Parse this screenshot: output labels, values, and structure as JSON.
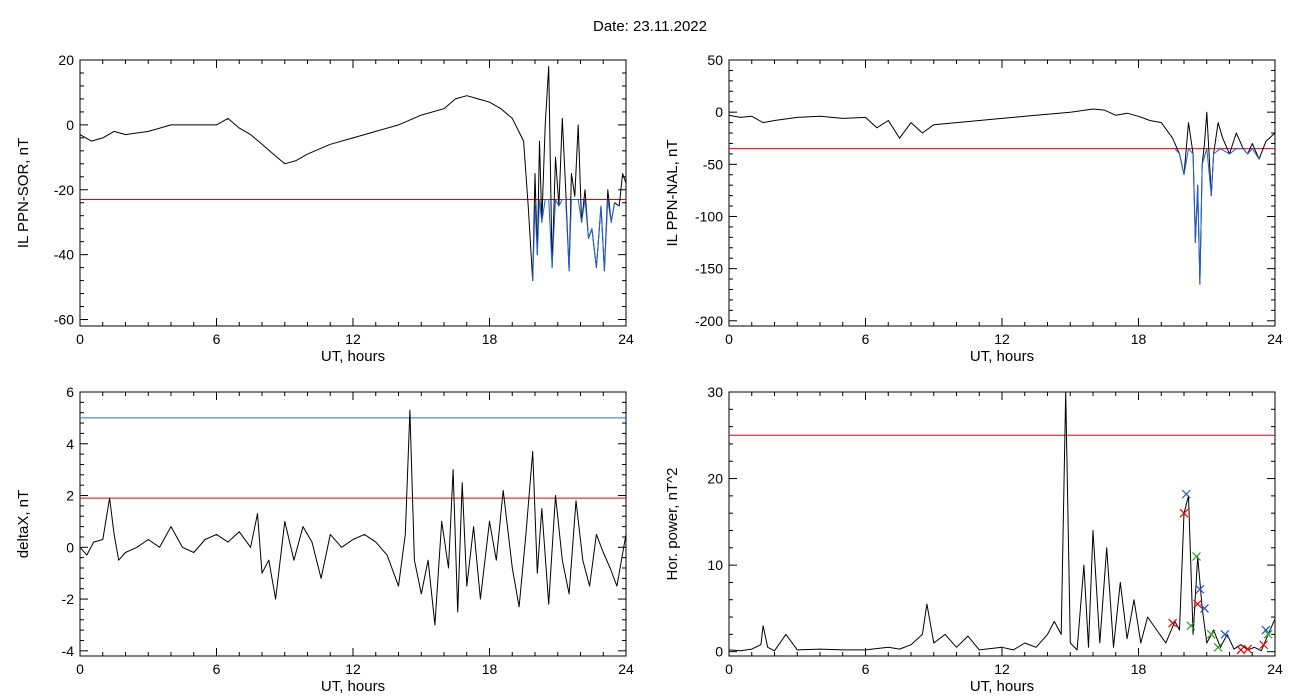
{
  "title": "Date:  23.11.2022",
  "chart_data": [
    {
      "type": "line",
      "ylabel": "IL PPN-SOR, nT",
      "xlabel": "UT, hours",
      "xlim": [
        0,
        24
      ],
      "ylim": [
        -62,
        20
      ],
      "xticks": [
        0,
        6,
        12,
        18,
        24
      ],
      "yticks": [
        -60,
        -40,
        -20,
        0,
        20
      ],
      "hlines": [
        {
          "y": -23,
          "color": "#e8000b"
        }
      ],
      "series": [
        {
          "color": "#000000",
          "x": [
            0,
            0.5,
            1,
            1.5,
            2,
            3,
            4,
            5,
            6,
            6.5,
            7,
            7.5,
            8,
            8.5,
            9,
            9.5,
            10,
            11,
            12,
            13,
            14,
            15,
            16,
            16.5,
            17,
            17.5,
            18,
            18.5,
            19,
            19.5,
            19.7,
            19.9,
            20.0,
            20.1,
            20.2,
            20.3,
            20.45,
            20.6,
            20.75,
            20.9,
            21.05,
            21.2,
            21.35,
            21.5,
            21.6,
            21.75,
            21.9,
            22.05,
            22.2,
            22.35,
            22.5,
            22.7,
            22.9,
            23.05,
            23.2,
            23.35,
            23.5,
            23.7,
            23.85,
            24
          ],
          "y": [
            -3,
            -5,
            -4,
            -2,
            -3,
            -2,
            0,
            0,
            0,
            2,
            -1,
            -3,
            -6,
            -9,
            -12,
            -11,
            -9,
            -6,
            -4,
            -2,
            0,
            3,
            5,
            8,
            9,
            8,
            7,
            5,
            2,
            -5,
            -25,
            -48,
            -15,
            -40,
            -5,
            -30,
            0,
            18,
            -44,
            -10,
            -25,
            2,
            -20,
            -45,
            -15,
            -22,
            0,
            -30,
            -20,
            -35,
            -32,
            -44,
            -25,
            -45,
            -20,
            -30,
            -24,
            -25,
            -15,
            -18
          ]
        },
        {
          "color": "#1f5fd6",
          "x": [
            19.9,
            20.0,
            20.1,
            20.2,
            20.3,
            20.45,
            20.6,
            20.75,
            20.9,
            21.05,
            21.2,
            21.35,
            21.5,
            21.6,
            21.75,
            21.9,
            22.05,
            22.2,
            22.35,
            22.5,
            22.7,
            22.9,
            23.05,
            23.2,
            23.35,
            23.5
          ],
          "y": [
            -48,
            -25,
            -40,
            -23,
            -30,
            -23,
            -23,
            -44,
            -23,
            -25,
            -23,
            -23,
            -45,
            -23,
            -23,
            -23,
            -30,
            -23,
            -35,
            -32,
            -44,
            -25,
            -45,
            -23,
            -30,
            -24
          ]
        }
      ]
    },
    {
      "type": "line",
      "ylabel": "IL PPN-NAL, nT",
      "xlabel": "UT, hours",
      "xlim": [
        0,
        24
      ],
      "ylim": [
        -205,
        50
      ],
      "xticks": [
        0,
        6,
        12,
        18,
        24
      ],
      "yticks": [
        -200,
        -150,
        -100,
        -50,
        0,
        50
      ],
      "hlines": [
        {
          "y": -35,
          "color": "#e8000b"
        }
      ],
      "series": [
        {
          "color": "#000000",
          "x": [
            0,
            0.5,
            1,
            1.5,
            2,
            3,
            4,
            5,
            6,
            6.5,
            7,
            7.5,
            8,
            8.5,
            9,
            10,
            11,
            12,
            13,
            14,
            15,
            16,
            16.5,
            17,
            17.5,
            18,
            18.5,
            19,
            19.5,
            19.8,
            20.0,
            20.2,
            20.4,
            20.5,
            20.6,
            20.7,
            20.8,
            20.9,
            21.0,
            21.2,
            21.3,
            21.5,
            21.7,
            22.0,
            22.3,
            22.6,
            22.8,
            23.0,
            23.3,
            23.6,
            24
          ],
          "y": [
            -3,
            -5,
            -4,
            -10,
            -8,
            -5,
            -4,
            -6,
            -5,
            -15,
            -8,
            -25,
            -10,
            -20,
            -12,
            -10,
            -8,
            -6,
            -4,
            -2,
            0,
            3,
            2,
            -3,
            -1,
            -4,
            -8,
            -10,
            -25,
            -40,
            -60,
            -10,
            -40,
            -125,
            -70,
            -165,
            -50,
            -30,
            0,
            -80,
            -40,
            -10,
            -25,
            -40,
            -20,
            -35,
            -40,
            -30,
            -45,
            -28,
            -20
          ]
        },
        {
          "color": "#1f5fd6",
          "x": [
            19.6,
            19.8,
            20.0,
            20.2,
            20.4,
            20.5,
            20.6,
            20.7,
            20.8,
            21.0,
            21.2,
            21.3,
            21.6,
            22.0,
            22.3,
            22.6,
            22.8,
            23.0,
            23.3
          ],
          "y": [
            -35,
            -40,
            -60,
            -35,
            -40,
            -125,
            -70,
            -165,
            -50,
            -35,
            -80,
            -40,
            -35,
            -40,
            -35,
            -35,
            -40,
            -35,
            -45
          ]
        }
      ]
    },
    {
      "type": "line",
      "ylabel": "deltaX, nT",
      "xlabel": "UT, hours",
      "xlim": [
        0,
        24
      ],
      "ylim": [
        -4.2,
        6
      ],
      "xticks": [
        0,
        6,
        12,
        18,
        24
      ],
      "yticks": [
        -4,
        -2,
        0,
        2,
        4,
        6
      ],
      "hlines": [
        {
          "y": 5.0,
          "color": "#1f77b4"
        },
        {
          "y": 1.9,
          "color": "#e8000b"
        }
      ],
      "series": [
        {
          "color": "#000000",
          "x": [
            0,
            0.3,
            0.6,
            1.0,
            1.3,
            1.5,
            1.7,
            2.0,
            2.5,
            3.0,
            3.5,
            4.0,
            4.5,
            5.0,
            5.5,
            6.0,
            6.5,
            7.0,
            7.5,
            7.8,
            8.0,
            8.3,
            8.6,
            9.0,
            9.4,
            9.8,
            10.2,
            10.6,
            11.0,
            11.5,
            12.0,
            12.5,
            13.0,
            13.5,
            14.0,
            14.3,
            14.5,
            14.7,
            15.0,
            15.3,
            15.6,
            15.9,
            16.2,
            16.4,
            16.6,
            16.8,
            17.0,
            17.3,
            17.6,
            18.0,
            18.3,
            18.6,
            19.0,
            19.3,
            19.6,
            19.9,
            20.1,
            20.3,
            20.6,
            20.9,
            21.2,
            21.5,
            21.8,
            22.1,
            22.4,
            22.7,
            23.0,
            23.3,
            23.6,
            24.0
          ],
          "y": [
            0,
            -0.3,
            0.2,
            0.3,
            1.9,
            0.5,
            -0.5,
            -0.2,
            0,
            0.3,
            0,
            0.8,
            0,
            -0.2,
            0.3,
            0.5,
            0.2,
            0.6,
            0,
            1.3,
            -1,
            -0.5,
            -2.0,
            1.0,
            -0.5,
            0.8,
            0.2,
            -1.2,
            0.5,
            0,
            0.3,
            0.5,
            0.2,
            -0.3,
            -1.5,
            0.5,
            5.3,
            -0.5,
            -1.8,
            -0.5,
            -3.0,
            1.0,
            -0.8,
            3.0,
            -2.5,
            2.5,
            -1.5,
            0.8,
            -2.0,
            1.0,
            -0.5,
            2.2,
            -0.8,
            -2.3,
            0.5,
            3.7,
            -1.0,
            1.5,
            -2.2,
            2.0,
            -0.5,
            -1.8,
            1.8,
            -0.5,
            -1.5,
            0.5,
            -0.2,
            -0.8,
            -1.5,
            0.5
          ]
        }
      ]
    },
    {
      "type": "line",
      "ylabel": "Hor. power, nT^2",
      "xlabel": "UT, hours",
      "xlim": [
        0,
        24
      ],
      "ylim": [
        -0.5,
        30
      ],
      "xticks": [
        0,
        6,
        12,
        18,
        24
      ],
      "yticks": [
        0,
        10,
        20,
        30
      ],
      "hlines": [
        {
          "y": 25.0,
          "color": "#e8000b"
        }
      ],
      "series": [
        {
          "color": "#000000",
          "x": [
            0,
            0.5,
            1.0,
            1.4,
            1.5,
            1.7,
            2.0,
            2.5,
            3,
            4,
            5,
            6,
            7,
            7.5,
            8,
            8.5,
            8.7,
            9,
            9.5,
            10,
            10.5,
            11,
            12,
            12.5,
            13,
            13.5,
            14,
            14.3,
            14.6,
            14.8,
            15.0,
            15.3,
            15.6,
            15.8,
            16.0,
            16.3,
            16.6,
            16.9,
            17.2,
            17.5,
            17.8,
            18.1,
            18.4,
            18.8,
            19.2,
            19.6,
            19.8,
            20.0,
            20.2,
            20.4,
            20.6,
            20.8,
            21.0,
            21.3,
            21.6,
            21.9,
            22.2,
            22.5,
            22.8,
            23.1,
            23.4,
            23.7,
            24.0
          ],
          "y": [
            0.2,
            0.1,
            0.3,
            0.8,
            3.0,
            0.5,
            0.1,
            2.0,
            0.2,
            0.3,
            0.2,
            0.2,
            0.5,
            0.3,
            0.8,
            2.0,
            5.5,
            1.0,
            2.0,
            0.5,
            1.8,
            0.2,
            0.5,
            0.2,
            1.0,
            0.5,
            2.0,
            3.5,
            2.0,
            30.0,
            1.0,
            0.2,
            10.0,
            0.5,
            14.0,
            1.0,
            12.0,
            0.5,
            8.0,
            1.5,
            6.0,
            1.0,
            4.0,
            2.5,
            1.0,
            3.5,
            2.5,
            16.0,
            18.0,
            2.0,
            11.0,
            5.0,
            1.0,
            2.5,
            0.5,
            2.0,
            0.3,
            0.8,
            0.2,
            0.5,
            0.1,
            2.0,
            3.8
          ]
        }
      ],
      "markers": [
        {
          "color": "#1f4fd6",
          "symbol": "x",
          "points": [
            [
              20.1,
              18.2
            ],
            [
              20.7,
              7.2
            ],
            [
              20.9,
              5.0
            ],
            [
              21.8,
              2.0
            ],
            [
              23.6,
              2.5
            ]
          ]
        },
        {
          "color": "#e8000b",
          "symbol": "x",
          "points": [
            [
              19.5,
              3.3
            ],
            [
              20.0,
              16.0
            ],
            [
              20.6,
              5.5
            ],
            [
              22.5,
              0.2
            ],
            [
              22.8,
              0.3
            ],
            [
              23.5,
              0.8
            ]
          ]
        },
        {
          "color": "#2ea02c",
          "symbol": "x",
          "points": [
            [
              20.55,
              11.0
            ],
            [
              20.3,
              3.0
            ],
            [
              21.2,
              2.0
            ],
            [
              21.5,
              0.5
            ],
            [
              23.7,
              2.0
            ]
          ]
        }
      ]
    }
  ]
}
